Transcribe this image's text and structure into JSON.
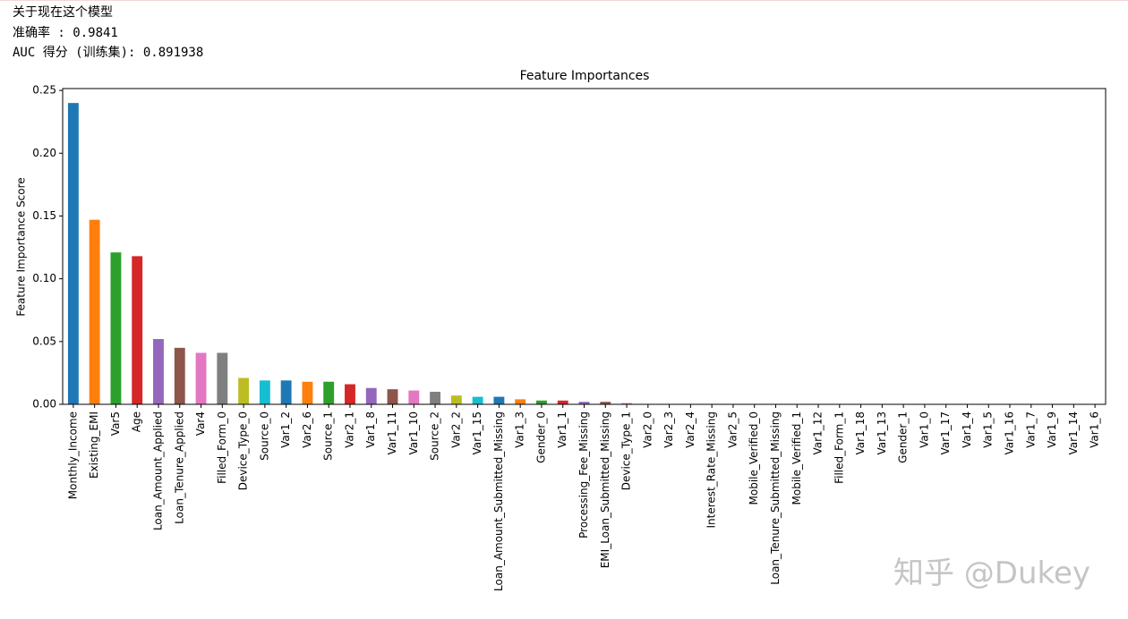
{
  "header": {
    "lines": [
      "关于现在这个模型",
      "准确率 : 0.9841",
      "AUC 得分 (训练集): 0.891938"
    ]
  },
  "chart_data": {
    "type": "bar",
    "title": "Feature Importances",
    "y_label": "Feature Importance Score",
    "categories": [
      "Monthly_Income",
      "Existing_EMI",
      "Var5",
      "Age",
      "Loan_Amount_Applied",
      "Loan_Tenure_Applied",
      "Var4",
      "Filled_Form_0",
      "Device_Type_0",
      "Source_0",
      "Var1_2",
      "Var2_6",
      "Source_1",
      "Var2_1",
      "Var1_8",
      "Var1_11",
      "Var1_10",
      "Source_2",
      "Var2_2",
      "Var1_15",
      "Loan_Amount_Submitted_Missing",
      "Var1_3",
      "Gender_0",
      "Var1_1",
      "Processing_Fee_Missing",
      "EMI_Loan_Submitted_Missing",
      "Device_Type_1",
      "Var2_0",
      "Var2_3",
      "Var2_4",
      "Interest_Rate_Missing",
      "Var2_5",
      "Mobile_Verified_0",
      "Loan_Tenure_Submitted_Missing",
      "Mobile_Verified_1",
      "Var1_12",
      "Filled_Form_1",
      "Var1_18",
      "Var1_13",
      "Gender_1",
      "Var1_0",
      "Var1_17",
      "Var1_4",
      "Var1_5",
      "Var1_16",
      "Var1_7",
      "Var1_9",
      "Var1_14",
      "Var1_6"
    ],
    "values": [
      0.24,
      0.147,
      0.121,
      0.118,
      0.052,
      0.045,
      0.041,
      0.041,
      0.021,
      0.019,
      0.019,
      0.018,
      0.018,
      0.016,
      0.013,
      0.012,
      0.011,
      0.01,
      0.007,
      0.006,
      0.006,
      0.004,
      0.003,
      0.003,
      0.002,
      0.002,
      0.001,
      0,
      0,
      0,
      0,
      0,
      0,
      0,
      0,
      0,
      0,
      0,
      0,
      0,
      0,
      0,
      0,
      0,
      0,
      0,
      0,
      0,
      0
    ],
    "colors": [
      "#1f77b4",
      "#ff7f0e",
      "#2ca02c",
      "#d62728",
      "#9467bd",
      "#8c564b",
      "#e377c2",
      "#7f7f7f",
      "#bcbd22",
      "#17becf"
    ],
    "ylim": [
      0,
      0.2515
    ],
    "yticks": [
      {
        "value": 0,
        "label": "0.00"
      },
      {
        "value": 0.05,
        "label": "0.05"
      },
      {
        "value": 0.1,
        "label": "0.10"
      },
      {
        "value": 0.15,
        "label": "0.15"
      },
      {
        "value": 0.2,
        "label": "0.20"
      },
      {
        "value": 0.25,
        "label": "0.25"
      }
    ],
    "grid": false
  },
  "watermark": "知乎 @Dukey"
}
